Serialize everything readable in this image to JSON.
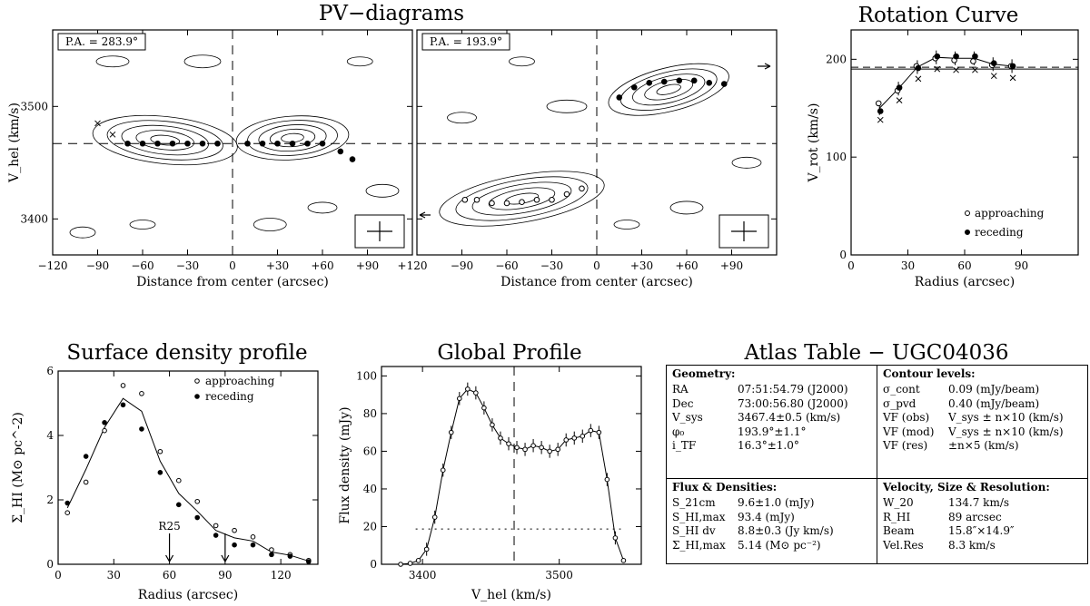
{
  "pv_title": "PV−diagrams",
  "rot_title": "Rotation Curve",
  "sd_title": "Surface density profile",
  "gp_title": "Global Profile",
  "atlas_title": "Atlas Table − UGC04036",
  "chart_data": [
    {
      "type": "contour",
      "name": "pv-diagram-1",
      "pa_label": "P.A. = 283.9°",
      "xlabel": "Distance from center (arcsec)",
      "ylabel": "V_hel (km/s)",
      "xlim": [
        -120,
        120
      ],
      "ylim": [
        3368,
        3568
      ],
      "xticks": [
        "−120",
        "−90",
        "−60",
        "−30",
        "0",
        "+30",
        "+60",
        "+90",
        "+120"
      ],
      "yticks": [
        "3400",
        "3500"
      ],
      "systemic_velocity": 3467,
      "points": [
        [
          -90,
          3485
        ],
        [
          -80,
          3475
        ],
        [
          -70,
          3467
        ],
        [
          -60,
          3467
        ],
        [
          -50,
          3467
        ],
        [
          -40,
          3467
        ],
        [
          -30,
          3467
        ],
        [
          -20,
          3467
        ],
        [
          -10,
          3467
        ],
        [
          10,
          3467
        ],
        [
          20,
          3467
        ],
        [
          30,
          3467
        ],
        [
          40,
          3467
        ],
        [
          50,
          3467
        ],
        [
          60,
          3467
        ],
        [
          72,
          3460
        ],
        [
          80,
          3453
        ]
      ]
    },
    {
      "type": "contour",
      "name": "pv-diagram-2",
      "pa_label": "P.A. = 193.9°",
      "xlabel": "Distance from center (arcsec)",
      "xlim": [
        -120,
        120
      ],
      "ylim": [
        3368,
        3568
      ],
      "xticks": [
        "−90",
        "−60",
        "−30",
        "0",
        "+30",
        "+60",
        "+90"
      ],
      "systemic_velocity": 3467,
      "points": [
        [
          -88,
          3417
        ],
        [
          -80,
          3417
        ],
        [
          -70,
          3414
        ],
        [
          -60,
          3414
        ],
        [
          -50,
          3415
        ],
        [
          -40,
          3417
        ],
        [
          -30,
          3417
        ],
        [
          -20,
          3422
        ],
        [
          -10,
          3427
        ],
        [
          15,
          3508
        ],
        [
          25,
          3517
        ],
        [
          35,
          3521
        ],
        [
          45,
          3522
        ],
        [
          55,
          3523
        ],
        [
          65,
          3523
        ],
        [
          75,
          3521
        ],
        [
          85,
          3520
        ]
      ]
    },
    {
      "type": "scatter",
      "name": "rotation-curve",
      "xlabel": "Radius (arcsec)",
      "ylabel": "V_rot (km/s)",
      "xlim": [
        0,
        120
      ],
      "ylim": [
        0,
        230
      ],
      "xticks": [
        0,
        30,
        60,
        90
      ],
      "yticks": [
        0,
        100,
        200
      ],
      "vsys_line": 190,
      "legend": [
        "approaching",
        "receding"
      ],
      "radius": [
        15,
        25,
        35,
        45,
        55,
        65,
        75,
        85
      ],
      "series": [
        {
          "name": "approaching",
          "values": [
            155,
            168,
            193,
            201,
            199,
            198,
            194,
            193
          ]
        },
        {
          "name": "receding",
          "values": [
            147,
            171,
            191,
            203,
            203,
            203,
            196,
            193
          ]
        },
        {
          "name": "fit",
          "values": [
            150,
            170,
            192,
            202,
            201,
            201,
            195,
            193
          ]
        }
      ]
    },
    {
      "type": "line",
      "name": "surface-density-profile",
      "xlabel": "Radius (arcsec)",
      "ylabel": "Σ_HI (M⊙ pc^-2)",
      "xlim": [
        0,
        140
      ],
      "ylim": [
        0,
        6
      ],
      "xticks": [
        0,
        30,
        60,
        90,
        120
      ],
      "yticks": [
        0,
        2,
        4,
        6
      ],
      "legend": [
        "approaching",
        "receding"
      ],
      "markers": [
        {
          "label": "R25",
          "x": 60
        },
        {
          "label": "",
          "x": 90
        }
      ],
      "series": [
        {
          "name": "approaching",
          "x": [
            5,
            15,
            25,
            35,
            45,
            55,
            65,
            75,
            85,
            95,
            105,
            115,
            125,
            135
          ],
          "values": [
            1.6,
            2.55,
            4.15,
            5.55,
            5.3,
            3.5,
            2.6,
            1.95,
            1.2,
            1.05,
            0.85,
            0.45,
            0.3,
            0.12
          ]
        },
        {
          "name": "receding",
          "x": [
            5,
            15,
            25,
            35,
            45,
            55,
            65,
            75,
            85,
            95,
            105,
            115,
            125,
            135
          ],
          "values": [
            1.9,
            3.35,
            4.4,
            4.95,
            4.2,
            2.85,
            1.85,
            1.45,
            0.9,
            0.6,
            0.6,
            0.3,
            0.25,
            0.08
          ]
        },
        {
          "name": "average",
          "x": [
            5,
            15,
            25,
            35,
            45,
            55,
            65,
            75,
            85,
            95,
            105,
            115,
            125,
            135
          ],
          "values": [
            1.75,
            2.95,
            4.25,
            5.15,
            4.75,
            3.2,
            2.2,
            1.65,
            1.05,
            0.82,
            0.72,
            0.38,
            0.28,
            0.1
          ]
        }
      ]
    },
    {
      "type": "line",
      "name": "global-profile",
      "xlabel": "V_hel (km/s)",
      "ylabel": "Flux density (mJy)",
      "xlim": [
        3370,
        3560
      ],
      "ylim": [
        0,
        105
      ],
      "xticks": [
        3400,
        3500
      ],
      "yticks": [
        0,
        20,
        40,
        60,
        80,
        100
      ],
      "vsys": 3467,
      "level_20": 18.7,
      "v": [
        3384,
        3391,
        3397,
        3403,
        3409,
        3415,
        3421,
        3427,
        3433,
        3439,
        3445,
        3451,
        3457,
        3463,
        3469,
        3475,
        3481,
        3487,
        3493,
        3499,
        3505,
        3511,
        3517,
        3523,
        3529,
        3535,
        3541,
        3547
      ],
      "values": [
        0,
        0.5,
        2,
        8,
        25,
        50,
        70,
        88,
        93,
        91,
        83,
        74,
        67,
        64,
        62,
        61,
        63,
        62,
        60,
        61,
        66,
        67,
        68,
        71,
        70,
        45,
        14,
        2
      ]
    }
  ],
  "atlas": {
    "geometry": {
      "heading": "Geometry:",
      "rows": [
        {
          "k": "RA",
          "v": "07:51:54.79 (J2000)"
        },
        {
          "k": "Dec",
          "v": "73:00:56.80 (J2000)"
        },
        {
          "k": "V_sys",
          "v": "3467.4±0.5 (km/s)"
        },
        {
          "k": "φ₀",
          "v": "193.9°±1.1°"
        },
        {
          "k": "i_TF",
          "v": "16.3°±1.0°"
        }
      ]
    },
    "contours": {
      "heading": "Contour levels:",
      "rows": [
        {
          "k": "σ_cont",
          "v": "0.09 (mJy/beam)"
        },
        {
          "k": "σ_pvd",
          "v": "0.40 (mJy/beam)"
        },
        {
          "k": "VF (obs)",
          "v": "V_sys ± n×10 (km/s)"
        },
        {
          "k": "VF (mod)",
          "v": "V_sys ± n×10 (km/s)"
        },
        {
          "k": "VF (res)",
          "v": "±n×5 (km/s)"
        }
      ]
    },
    "flux": {
      "heading": "Flux & Densities:",
      "rows": [
        {
          "k": "S_21cm",
          "v": "9.6±1.0 (mJy)"
        },
        {
          "k": "S_HI,max",
          "v": "93.4 (mJy)"
        },
        {
          "k": "S_HI dv",
          "v": "8.8±0.3 (Jy km/s)"
        },
        {
          "k": "Σ_HI,max",
          "v": "5.14 (M⊙ pc⁻²)"
        }
      ]
    },
    "velocity": {
      "heading": "Velocity, Size & Resolution:",
      "rows": [
        {
          "k": "W_20",
          "v": "134.7 km/s"
        },
        {
          "k": "R_HI",
          "v": "89 arcsec"
        },
        {
          "k": "Beam",
          "v": "15.8″×14.9″"
        },
        {
          "k": "Vel.Res",
          "v": "8.3 km/s"
        }
      ]
    }
  }
}
